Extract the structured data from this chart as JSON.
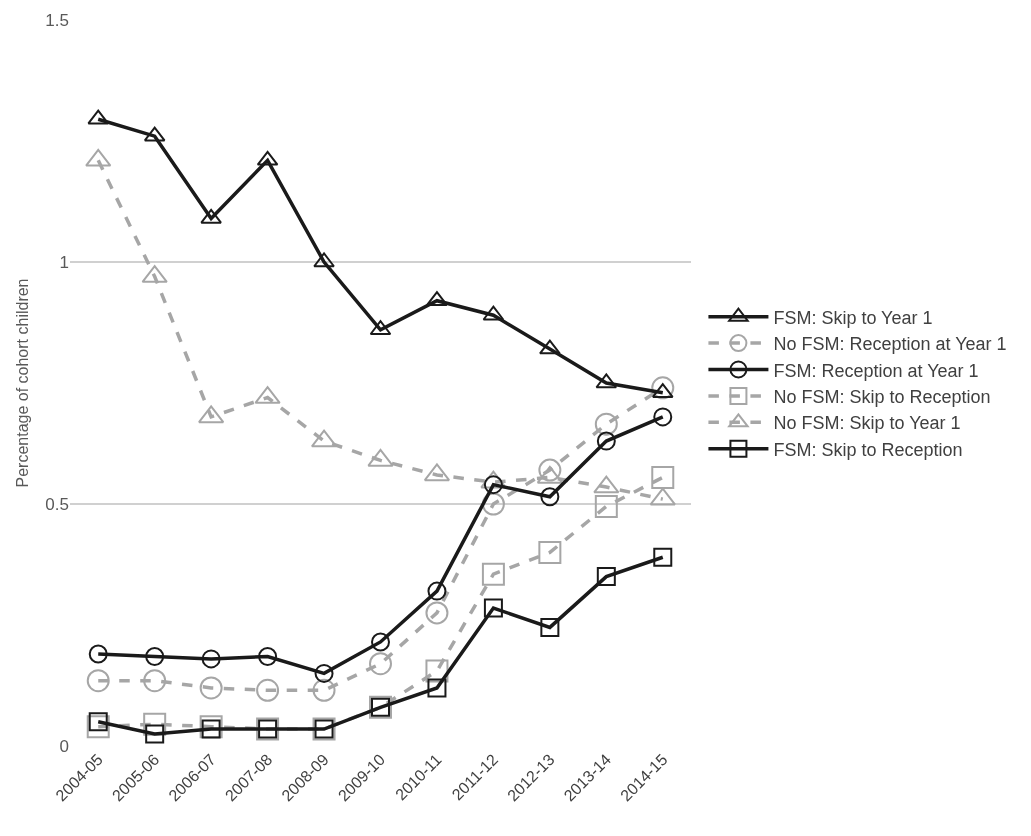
{
  "chart_data": {
    "type": "line",
    "ylabel": "Percentage of cohort children",
    "categories": [
      "2004-05",
      "2005-06",
      "2006-07",
      "2007-08",
      "2008-09",
      "2009-10",
      "2010-11",
      "2011-12",
      "2012-13",
      "2013-14",
      "2014-15"
    ],
    "ylim": [
      0,
      1.5
    ],
    "yticks": [
      0,
      0.5,
      1,
      1.5
    ],
    "grid": "y",
    "legend": "right",
    "series": [
      {
        "name": "FSM: Skip to Year 1",
        "color": "#1a1a1a",
        "marker": "triangle",
        "line_style": "solid",
        "values": [
          1.295,
          1.26,
          1.09,
          1.21,
          1.0,
          0.86,
          0.92,
          0.89,
          0.82,
          0.75,
          0.73
        ]
      },
      {
        "name": "No FSM: Reception at Year 1",
        "color": "#a6a6a6",
        "marker": "circle",
        "line_style": "dashed",
        "values": [
          0.135,
          0.135,
          0.12,
          0.115,
          0.115,
          0.17,
          0.275,
          0.5,
          0.57,
          0.665,
          0.74
        ]
      },
      {
        "name": "FSM: Reception at Year 1",
        "color": "#1a1a1a",
        "marker": "circle",
        "line_style": "solid",
        "values": [
          0.19,
          0.185,
          0.18,
          0.185,
          0.15,
          0.215,
          0.32,
          0.54,
          0.515,
          0.63,
          0.68
        ]
      },
      {
        "name": "No FSM: Skip to Reception",
        "color": "#a6a6a6",
        "marker": "square",
        "line_style": "dashed",
        "values": [
          0.04,
          0.045,
          0.04,
          0.035,
          0.035,
          0.08,
          0.155,
          0.355,
          0.4,
          0.495,
          0.555
        ]
      },
      {
        "name": "No FSM: Skip to Year 1",
        "color": "#a6a6a6",
        "marker": "triangle",
        "line_style": "dashed",
        "values": [
          1.21,
          0.97,
          0.68,
          0.72,
          0.63,
          0.59,
          0.56,
          0.545,
          0.555,
          0.535,
          0.51
        ]
      },
      {
        "name": "FSM: Skip to Reception",
        "color": "#1a1a1a",
        "marker": "square",
        "line_style": "solid",
        "values": [
          0.05,
          0.025,
          0.035,
          0.035,
          0.035,
          0.08,
          0.12,
          0.285,
          0.245,
          0.35,
          0.39
        ]
      }
    ]
  }
}
